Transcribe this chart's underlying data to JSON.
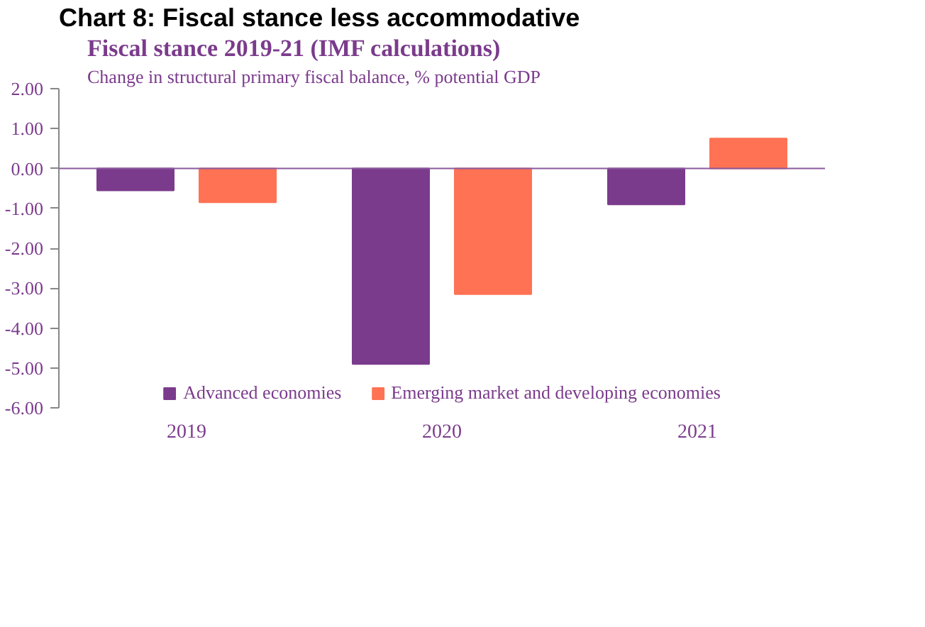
{
  "chart_data": {
    "type": "bar",
    "title": "Chart 8: Fiscal stance less accommodative",
    "subtitle": "Fiscal stance 2019-21 (IMF calculations)",
    "ylabel": "Change in structural primary fiscal balance, % potential GDP",
    "categories": [
      "2019",
      "2020",
      "2021"
    ],
    "series": [
      {
        "name": "Advanced economies",
        "color": "#7b3b8c",
        "values": [
          -0.55,
          -4.9,
          -0.9
        ]
      },
      {
        "name": "Emerging market and developing economies",
        "color": "#ff7254",
        "values": [
          -0.85,
          -3.15,
          0.75
        ]
      }
    ],
    "ylim": [
      -6,
      2
    ],
    "yticks": [
      {
        "value": 2,
        "label": "2.00"
      },
      {
        "value": 1,
        "label": "1.00"
      },
      {
        "value": 0,
        "label": "0.00"
      },
      {
        "value": -1,
        "label": "-1.00"
      },
      {
        "value": -2,
        "label": "-2.00"
      },
      {
        "value": -3,
        "label": "-3.00"
      },
      {
        "value": -4,
        "label": "-4.00"
      },
      {
        "value": -5,
        "label": "-5.00"
      },
      {
        "value": -6,
        "label": "-6.00"
      }
    ],
    "ref_lines": [
      {
        "axis": "y",
        "value": 0,
        "color": "#8a5a9e"
      }
    ],
    "grid": false,
    "legend": "bottom"
  }
}
